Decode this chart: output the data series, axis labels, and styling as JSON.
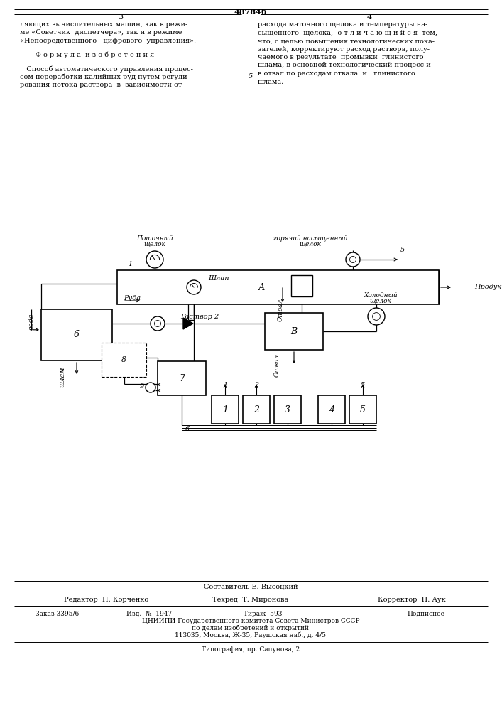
{
  "bg_color": "#ffffff",
  "page_number": "487846",
  "col_left_num": "3",
  "col_right_num": "4",
  "text_left_lines": [
    "ляющих вычислительных машин, как в режи-",
    "ме «Советчик  диспетчера», так и в режиме",
    "«Непосредственного   цифрового  управления».",
    "",
    "       Ф о р м у л а  и з о б р е т е н и я",
    "",
    "   Способ автоматического управления процес-",
    "сом переработки калийных руд путем регули-",
    "рования потока раствора  в  зависимости от"
  ],
  "text_right_lines": [
    "расхода маточного щелока и температуры на-",
    "сыщенного  щелока,  о т л и ч а ю щ и й с я  тем,",
    "что, с целью повышения технологических пока-",
    "зателей, корректируют расход раствора, полу-",
    "чаемого в результате  промывки  глинистого",
    "шлама, в основной технологический процесс и",
    "в отвал по расходам отвала  и   глинистого",
    "шлама."
  ],
  "line5_number": "5",
  "footer_compiler": "Составитель Е. Высоцкий",
  "footer_editor": "Редактор  Н. Корченко",
  "footer_techred": "Техред  Т. Миронова",
  "footer_corrector": "Корректор  Н. Аук",
  "footer_order": "Заказ 3395/6",
  "footer_iss": "Изд.  №  1947",
  "footer_copies": "Тираж  593",
  "footer_signed": "Подписное",
  "footer_org1": "ЦНИИПИ Государственного комитета Совета Министров СССР",
  "footer_org2": "по делам изобретений и открытий",
  "footer_org3": "113035, Москва, Ж-35, Раушская наб., д. 4/5",
  "footer_print": "Типография, пр. Сапунова, 2"
}
